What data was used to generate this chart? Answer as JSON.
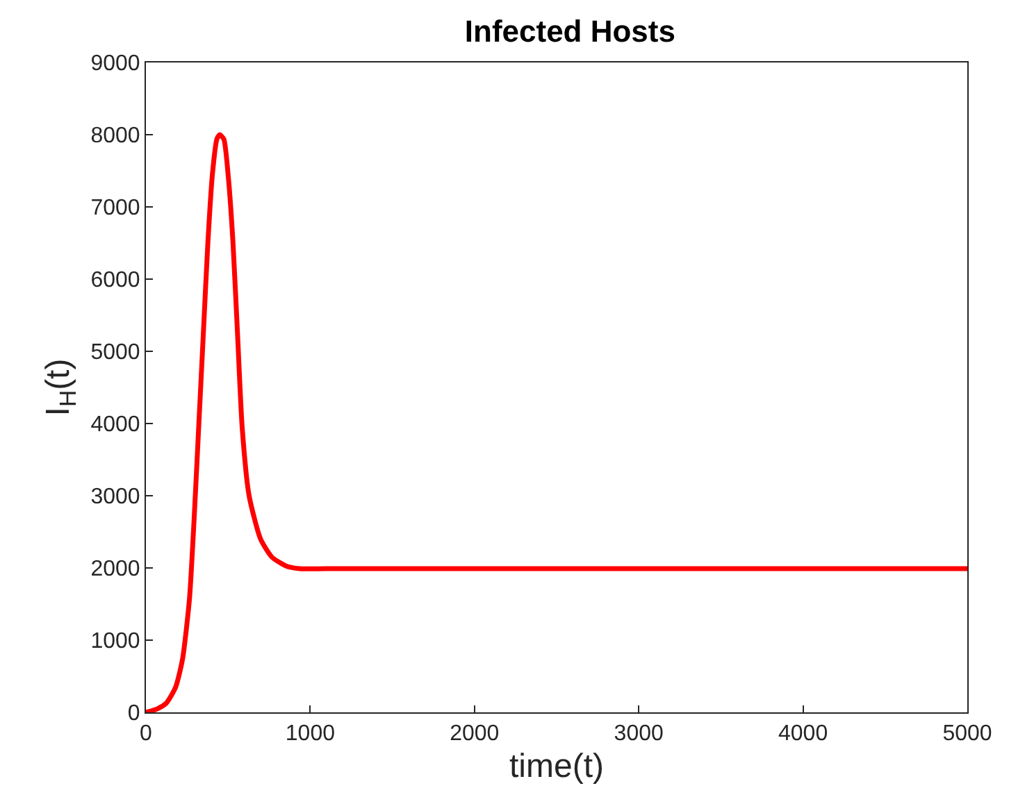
{
  "chart_data": {
    "type": "line",
    "title": "Infected Hosts",
    "xlabel": "time(t)",
    "ylabel": "I$_{H}$(t)",
    "series": [
      {
        "color": "#ff0000",
        "x": [
          0,
          70,
          125,
          181,
          223,
          265,
          293,
          321,
          349,
          377,
          405,
          432,
          449,
          474,
          502,
          530,
          558,
          586,
          628,
          698,
          767,
          851,
          935,
          1100,
          2000,
          3000,
          4000,
          5000
        ],
        "values": [
          0,
          50,
          130,
          350,
          740,
          1570,
          2660,
          3940,
          5220,
          6500,
          7460,
          7940,
          8000,
          7940,
          7400,
          6500,
          5220,
          3940,
          3000,
          2400,
          2150,
          2030,
          1990,
          1990,
          1990,
          1990,
          1990,
          1990
        ]
      }
    ],
    "xlim": [
      0,
      5000
    ],
    "xticks": [
      0,
      1000,
      2000,
      3000,
      4000,
      5000
    ],
    "ylim": [
      0,
      9000
    ],
    "yticks": [
      0,
      1000,
      2000,
      3000,
      4000,
      5000,
      6000,
      7000,
      8000,
      9000
    ],
    "legend": false,
    "marker": "none",
    "line_style": "solid"
  }
}
